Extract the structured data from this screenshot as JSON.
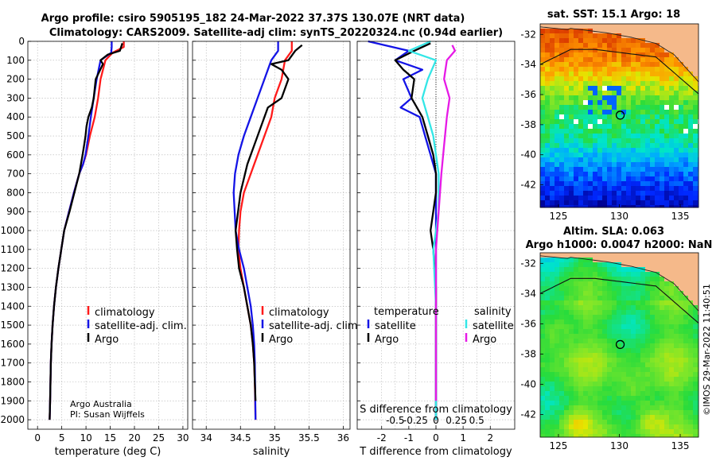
{
  "header": {
    "title_line1": "Argo profile: csiro 5905195_182 24-Mar-2022 37.37S 130.07E (NRT data)",
    "title_line2": "Climatology: CARS2009. Satellite-adj clim: synTS_20220324.nc (0.94d earlier)"
  },
  "credit": {
    "line1": "Argo Australia",
    "line2": "PI: Susan Wijffels",
    "side": "©IMOS 29-Mar-2022 11:40:51"
  },
  "colors": {
    "climatology": "#ff1a1a",
    "satellite": "#1414e6",
    "argo": "#000000",
    "sat_salinity": "#33e6e6",
    "argo_salinity": "#e61ae6",
    "land": "#f5b98a",
    "grid": "#b4b4b4"
  },
  "chart_data": [
    {
      "type": "line",
      "name": "temperature-profile",
      "xlabel": "temperature (deg C)",
      "xlim": [
        -2,
        31
      ],
      "ylim": [
        2050,
        0
      ],
      "xticks": [
        0,
        5,
        10,
        15,
        20,
        25,
        30
      ],
      "xtick_labels": [
        "0",
        "5",
        "10",
        "15",
        "20",
        "25",
        "30"
      ],
      "yticks": [
        0,
        100,
        200,
        300,
        400,
        500,
        600,
        700,
        800,
        900,
        1000,
        1100,
        1200,
        1300,
        1400,
        1500,
        1600,
        1700,
        1800,
        1900,
        2000
      ],
      "ytick_labels": [
        "0",
        "100",
        "200",
        "300",
        "400",
        "500",
        "600",
        "700",
        "800",
        "900",
        "1000",
        "1100",
        "1200",
        "1300",
        "1400",
        "1500",
        "1600",
        "1700",
        "1800",
        "1900",
        "2000"
      ],
      "legend": [
        "climatology",
        "satellite-adj. clim.",
        "Argo"
      ],
      "series": [
        {
          "name": "climatology",
          "color": "#ff1a1a",
          "x": [
            17.8,
            17.8,
            15.5,
            14.0,
            13.0,
            12.5,
            11.8,
            10.8,
            10.0,
            9.4,
            8.6,
            7.5,
            6.5,
            5.5,
            4.9,
            4.3,
            3.8,
            3.4,
            3.1,
            2.9,
            2.75,
            2.6,
            2.5
          ],
          "y": [
            0,
            30,
            60,
            100,
            200,
            300,
            400,
            500,
            600,
            650,
            700,
            800,
            900,
            1000,
            1100,
            1200,
            1300,
            1400,
            1500,
            1600,
            1700,
            1900,
            2000
          ]
        },
        {
          "name": "satellite-adj. clim.",
          "color": "#1414e6",
          "x": [
            15.3,
            15.3,
            15.2,
            13.0,
            12.2,
            11.6,
            11.0,
            10.5,
            9.9,
            9.4,
            8.6,
            7.5,
            6.5,
            5.5,
            4.9,
            4.3,
            3.8,
            3.4,
            3.1,
            2.9,
            2.75,
            2.6,
            2.5
          ],
          "y": [
            0,
            30,
            60,
            100,
            200,
            300,
            400,
            500,
            600,
            650,
            700,
            800,
            900,
            1000,
            1100,
            1200,
            1300,
            1400,
            1500,
            1600,
            1700,
            1900,
            2000
          ]
        },
        {
          "name": "Argo",
          "color": "#000000",
          "x": [
            17.5,
            17.0,
            14.5,
            13.0,
            13.5,
            12.0,
            11.6,
            11.2,
            10.5,
            10.1,
            9.9,
            9.6,
            9.3,
            8.6,
            7.6,
            6.6,
            5.5,
            4.9,
            4.3,
            3.8,
            3.4,
            3.1,
            2.9,
            2.75,
            2.6,
            2.5
          ],
          "y": [
            10,
            50,
            70,
            100,
            120,
            200,
            300,
            350,
            400,
            450,
            500,
            550,
            600,
            700,
            800,
            900,
            1000,
            1100,
            1200,
            1300,
            1400,
            1500,
            1600,
            1700,
            1900,
            2000
          ]
        }
      ]
    },
    {
      "type": "line",
      "name": "salinity-profile",
      "xlabel": "salinity",
      "xlim": [
        33.8,
        36.1
      ],
      "ylim": [
        2050,
        0
      ],
      "xticks": [
        34,
        34.5,
        35,
        35.5,
        36
      ],
      "xtick_labels": [
        "34",
        "34.5",
        "35",
        "35.5",
        "36"
      ],
      "legend": [
        "climatology",
        "satellite-adj. clim.",
        "Argo"
      ],
      "series": [
        {
          "name": "climatology",
          "color": "#ff1a1a",
          "x": [
            35.25,
            35.25,
            35.15,
            35.1,
            35.0,
            34.95,
            34.85,
            34.75,
            34.65,
            34.55,
            34.5,
            34.48,
            34.47,
            34.5,
            34.55,
            34.6,
            34.65,
            34.68,
            34.7,
            34.71,
            34.72
          ],
          "y": [
            0,
            50,
            100,
            200,
            300,
            400,
            500,
            600,
            700,
            800,
            900,
            1000,
            1100,
            1200,
            1300,
            1400,
            1500,
            1600,
            1700,
            1800,
            2000
          ]
        },
        {
          "name": "satellite-adj. clim.",
          "color": "#1414e6",
          "x": [
            35.05,
            35.05,
            34.95,
            34.85,
            34.75,
            34.65,
            34.55,
            34.47,
            34.42,
            34.4,
            34.43,
            34.48,
            34.55,
            34.6,
            34.65,
            34.68,
            34.7,
            34.71,
            34.72
          ],
          "y": [
            0,
            50,
            100,
            200,
            300,
            400,
            500,
            600,
            700,
            800,
            1000,
            1100,
            1200,
            1300,
            1400,
            1500,
            1600,
            1700,
            2000
          ]
        },
        {
          "name": "Argo",
          "color": "#000000",
          "x": [
            35.4,
            35.3,
            35.2,
            34.95,
            35.1,
            35.2,
            35.1,
            34.9,
            34.8,
            34.7,
            34.6,
            34.5,
            34.43,
            34.45,
            34.48,
            34.55,
            34.6,
            34.65,
            34.68,
            34.7,
            34.71,
            34.72
          ],
          "y": [
            20,
            50,
            100,
            120,
            150,
            200,
            300,
            350,
            450,
            550,
            650,
            800,
            1000,
            1100,
            1200,
            1300,
            1400,
            1500,
            1600,
            1700,
            1800,
            1900
          ]
        }
      ]
    },
    {
      "type": "line",
      "name": "difference-profile",
      "xlabel": "T difference from climatology",
      "xlabel_top": "S difference from climatology",
      "xlim": [
        -2.9,
        2.9
      ],
      "ylim": [
        2050,
        0
      ],
      "xticks": [
        -2,
        -1,
        0,
        1,
        2
      ],
      "xtick_labels": [
        "-2",
        "-1",
        "0",
        "1",
        "2"
      ],
      "s_ticks": [
        -1.5,
        -0.75,
        0,
        0.75,
        1.5
      ],
      "s_tick_labels": [
        "-0.5",
        "-0.25",
        "0",
        "0.25",
        "0.5"
      ],
      "legend_headers": [
        "temperature",
        "salinity"
      ],
      "legend": [
        "satellite",
        "Argo",
        "satellite",
        "Argo"
      ],
      "series": [
        {
          "name": "T satellite",
          "color": "#1414e6",
          "x": [
            -2.5,
            -1.0,
            -1.5,
            -0.5,
            -1.2,
            -0.9,
            -1.3,
            -0.6,
            -0.4,
            -0.2,
            0.0,
            0.0,
            0.0,
            0.0,
            0.0,
            0.0
          ],
          "y": [
            0,
            50,
            100,
            150,
            200,
            300,
            350,
            400,
            500,
            600,
            700,
            900,
            1100,
            1400,
            1700,
            2000
          ]
        },
        {
          "name": "T Argo",
          "color": "#000000",
          "x": [
            -0.2,
            -0.8,
            -1.5,
            -1.2,
            -0.8,
            -0.9,
            -0.5,
            -0.3,
            -0.1,
            0.0,
            0.0,
            -0.1,
            -0.2,
            -0.1,
            0.0,
            0.0,
            0.0
          ],
          "y": [
            10,
            50,
            100,
            150,
            200,
            300,
            400,
            500,
            600,
            700,
            800,
            900,
            1000,
            1100,
            1300,
            1600,
            2000
          ]
        },
        {
          "name": "S satellite",
          "color": "#33e6e6",
          "x": [
            -0.2,
            -1.0,
            0.0,
            -0.3,
            -0.5,
            -0.3,
            -0.1,
            0.0,
            0.1,
            0.1,
            0.0,
            -0.1,
            0.0,
            0.0
          ],
          "y": [
            0,
            50,
            100,
            200,
            300,
            400,
            500,
            600,
            700,
            900,
            1000,
            1100,
            1400,
            2000
          ]
        },
        {
          "name": "S Argo",
          "color": "#e61ae6",
          "x": [
            0.6,
            0.7,
            0.4,
            0.3,
            0.5,
            0.4,
            0.3,
            0.2,
            0.1,
            0.0,
            0.0,
            0.0
          ],
          "y": [
            20,
            50,
            100,
            200,
            300,
            400,
            550,
            700,
            900,
            1100,
            1500,
            1900
          ]
        }
      ]
    },
    {
      "type": "heatmap",
      "name": "sst-map",
      "title": "sat. SST: 15.1 Argo: 18",
      "xlim": [
        123.5,
        136.5
      ],
      "ylim": [
        -43.5,
        -31.3
      ],
      "xticks": [
        125,
        130,
        135
      ],
      "xtick_labels": [
        "125",
        "130",
        "135"
      ],
      "yticks": [
        -32,
        -34,
        -36,
        -38,
        -40,
        -42
      ],
      "ytick_labels": [
        "-32",
        "-34",
        "-36",
        "-38",
        "-40",
        "-42"
      ],
      "profile_location": [
        130.07,
        -37.37
      ]
    },
    {
      "type": "heatmap",
      "name": "sla-map",
      "title": "Altim. SLA: 0.063",
      "subtitle": "Argo h1000: 0.0047 h2000: NaN",
      "xlim": [
        123.5,
        136.5
      ],
      "ylim": [
        -43.5,
        -31.3
      ],
      "xticks": [
        125,
        130,
        135
      ],
      "xtick_labels": [
        "125",
        "130",
        "135"
      ],
      "yticks": [
        -32,
        -34,
        -36,
        -38,
        -40,
        -42
      ],
      "ytick_labels": [
        "-32",
        "-34",
        "-36",
        "-38",
        "-40",
        "-42"
      ],
      "profile_location": [
        130.07,
        -37.37
      ]
    }
  ]
}
